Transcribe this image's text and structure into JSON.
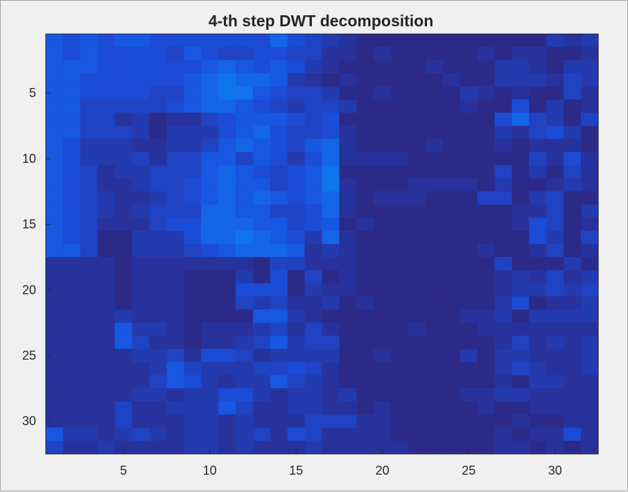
{
  "chart_data": {
    "type": "heatmap",
    "title": "4-th step DWT decomposition",
    "xlabel": "",
    "ylabel": "",
    "rows": 32,
    "cols": 32,
    "xlim": [
      0.5,
      32.5
    ],
    "ylim": [
      0.5,
      32.5
    ],
    "y_direction": "reversed",
    "x_ticks": [
      5,
      10,
      15,
      20,
      25,
      30
    ],
    "y_ticks": [
      5,
      10,
      15,
      20,
      25,
      30
    ],
    "grid": false,
    "colormap": "parula-blue",
    "colors": {
      "low": "#2c2a88",
      "mid": "#1a4fe0",
      "high": "#0d7fee",
      "max": "#1a96d8"
    },
    "vmin": 0,
    "vmax": 9,
    "values": [
      "54545544444446432100000000000212",
      "54544443543344331101000001011001",
      "55544444456545421000001000221022",
      "55444444567665210100000100222132",
      "55444433567754332001000021010031",
      "55333334566543233200000010040201",
      "55331201134555434000000000463203",
      "55333202224564334100000000213420",
      "54222112235654356100001000101110",
      "54222313355354246111100000003141",
      "54312233356543457000000000302031",
      "54311233456553457100011110200121",
      "54321123456565456101110003302300",
      "54321233366553346100000000011302",
      "54311134466655345010000000014301",
      "54300222466765426100000000004203",
      "55300222345666512100000001001301",
      "11110111111103311100000000300020",
      "11110111000204030100000000121312",
      "11110111000444021100000000122323",
      "11110111000323112010000000240112",
      "11112111000055210000000011202222",
      "11115221011123131000010001111111",
      "11115311011235233000000000131212",
      "11111223144312222001000020221112",
      "11111125322233431000000000232112",
      "11111135421225321000000000102211",
      "11111221224421221200000011221111",
      "11113112225311221101000001001111",
      "11113111221211133311000000010011",
      "52212321221231431111000000101141",
      "31121111221211121111100000110101"
    ]
  }
}
